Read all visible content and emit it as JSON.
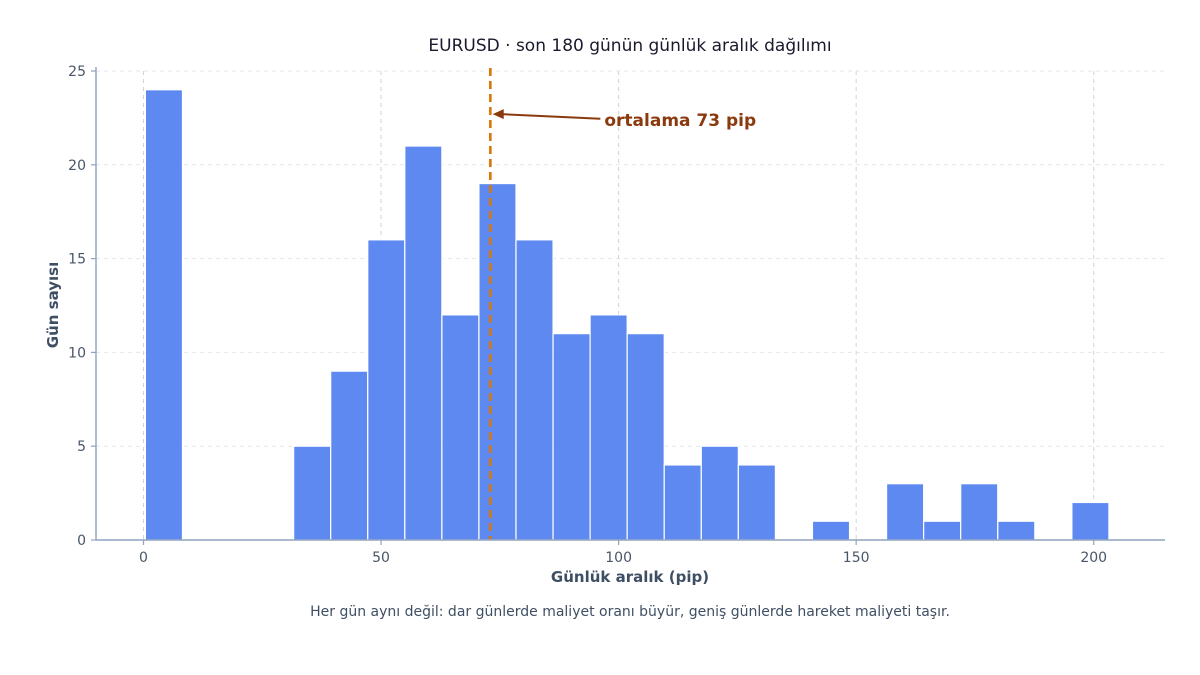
{
  "chart_data": {
    "type": "bar",
    "title": "EURUSD · son 180 günün günlük aralık dağılımı",
    "xlabel": "Günlük aralık (pip)",
    "ylabel": "Gün sayısı",
    "caption": "Her gün aynı değil: dar günlerde maliyet oranı büyür, geniş günlerde hareket maliyeti taşır.",
    "xlim": [
      -10,
      215
    ],
    "ylim": [
      0,
      25
    ],
    "x_ticks": [
      0,
      50,
      100,
      150,
      200
    ],
    "y_ticks": [
      0,
      5,
      10,
      15,
      20,
      25
    ],
    "grid": true,
    "bin_width": 7.8,
    "bins": [
      {
        "start": 0.4,
        "count": 24
      },
      {
        "start": 8.2,
        "count": 0
      },
      {
        "start": 16.0,
        "count": 0
      },
      {
        "start": 23.8,
        "count": 0
      },
      {
        "start": 31.6,
        "count": 5
      },
      {
        "start": 39.4,
        "count": 9
      },
      {
        "start": 47.2,
        "count": 16
      },
      {
        "start": 55.0,
        "count": 21
      },
      {
        "start": 62.8,
        "count": 12
      },
      {
        "start": 70.6,
        "count": 19
      },
      {
        "start": 78.4,
        "count": 16
      },
      {
        "start": 86.2,
        "count": 11
      },
      {
        "start": 94.0,
        "count": 12
      },
      {
        "start": 101.8,
        "count": 11
      },
      {
        "start": 109.6,
        "count": 4
      },
      {
        "start": 117.4,
        "count": 5
      },
      {
        "start": 125.2,
        "count": 4
      },
      {
        "start": 133.0,
        "count": 0
      },
      {
        "start": 140.8,
        "count": 1
      },
      {
        "start": 148.6,
        "count": 0
      },
      {
        "start": 156.4,
        "count": 3
      },
      {
        "start": 164.2,
        "count": 1
      },
      {
        "start": 172.0,
        "count": 3
      },
      {
        "start": 179.8,
        "count": 1
      },
      {
        "start": 187.6,
        "count": 0
      },
      {
        "start": 195.4,
        "count": 2
      }
    ],
    "mean_line": {
      "value": 73,
      "label": "ortalama 73 pip",
      "arrow_tip": {
        "x": 73.5,
        "y": 22.7
      },
      "label_at": {
        "x": 97,
        "y": 22.4
      }
    },
    "colors": {
      "bar": "#4f7ff0",
      "bar_edge": "#ffffff",
      "mean_line": "#d97706",
      "annotation": "#8b3a0e",
      "axis": "#8fa3bf",
      "grid": "#d9dde3"
    }
  }
}
